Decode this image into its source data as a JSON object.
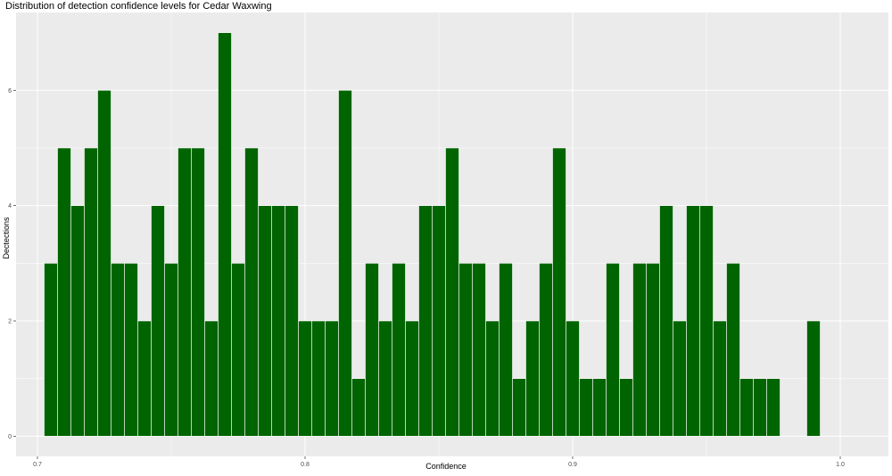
{
  "chart_data": {
    "type": "bar",
    "title": "Distribution of detection confidence levels for Cedar Waxwing",
    "xlabel": "Confidence",
    "ylabel": "Dectections",
    "bin_width": 0.005,
    "bin_starts": [
      0.7025,
      0.7075,
      0.7125,
      0.7175,
      0.7225,
      0.7275,
      0.7325,
      0.7375,
      0.7425,
      0.7475,
      0.7525,
      0.7575,
      0.7625,
      0.7675,
      0.7725,
      0.7775,
      0.7825,
      0.7875,
      0.7925,
      0.7975,
      0.8025,
      0.8075,
      0.8125,
      0.8175,
      0.8225,
      0.8275,
      0.8325,
      0.8375,
      0.8425,
      0.8475,
      0.8525,
      0.8575,
      0.8625,
      0.8675,
      0.8725,
      0.8775,
      0.8825,
      0.8875,
      0.8925,
      0.8975,
      0.9025,
      0.9075,
      0.9125,
      0.9175,
      0.9225,
      0.9275,
      0.9325,
      0.9375,
      0.9425,
      0.9475,
      0.9525,
      0.9575,
      0.9625,
      0.9675,
      0.9725,
      0.9775,
      0.9825,
      0.9875
    ],
    "values": [
      3,
      5,
      4,
      5,
      6,
      3,
      3,
      2,
      4,
      3,
      5,
      5,
      2,
      7,
      3,
      5,
      4,
      4,
      4,
      2,
      2,
      2,
      6,
      1,
      3,
      2,
      3,
      2,
      4,
      4,
      5,
      3,
      3,
      2,
      3,
      1,
      2,
      3,
      5,
      2,
      1,
      1,
      3,
      1,
      3,
      3,
      4,
      2,
      4,
      4,
      2,
      3,
      1,
      1,
      1,
      0,
      0,
      2
    ],
    "xlim": [
      0.692,
      1.018
    ],
    "ylim": [
      -0.35,
      7.35
    ],
    "x_ticks": [
      0.7,
      0.8,
      0.9,
      1.0
    ],
    "x_tick_labels": [
      "0.7",
      "0.8",
      "0.9",
      "1.0"
    ],
    "y_ticks": [
      0,
      2,
      4,
      6
    ],
    "y_tick_labels": [
      "0",
      "2",
      "4",
      "6"
    ],
    "grid": true,
    "colors": {
      "bar_fill": "#006400",
      "bar_outline": "#ffffff",
      "panel_bg": "#ebebeb",
      "grid": "#ffffff"
    }
  }
}
